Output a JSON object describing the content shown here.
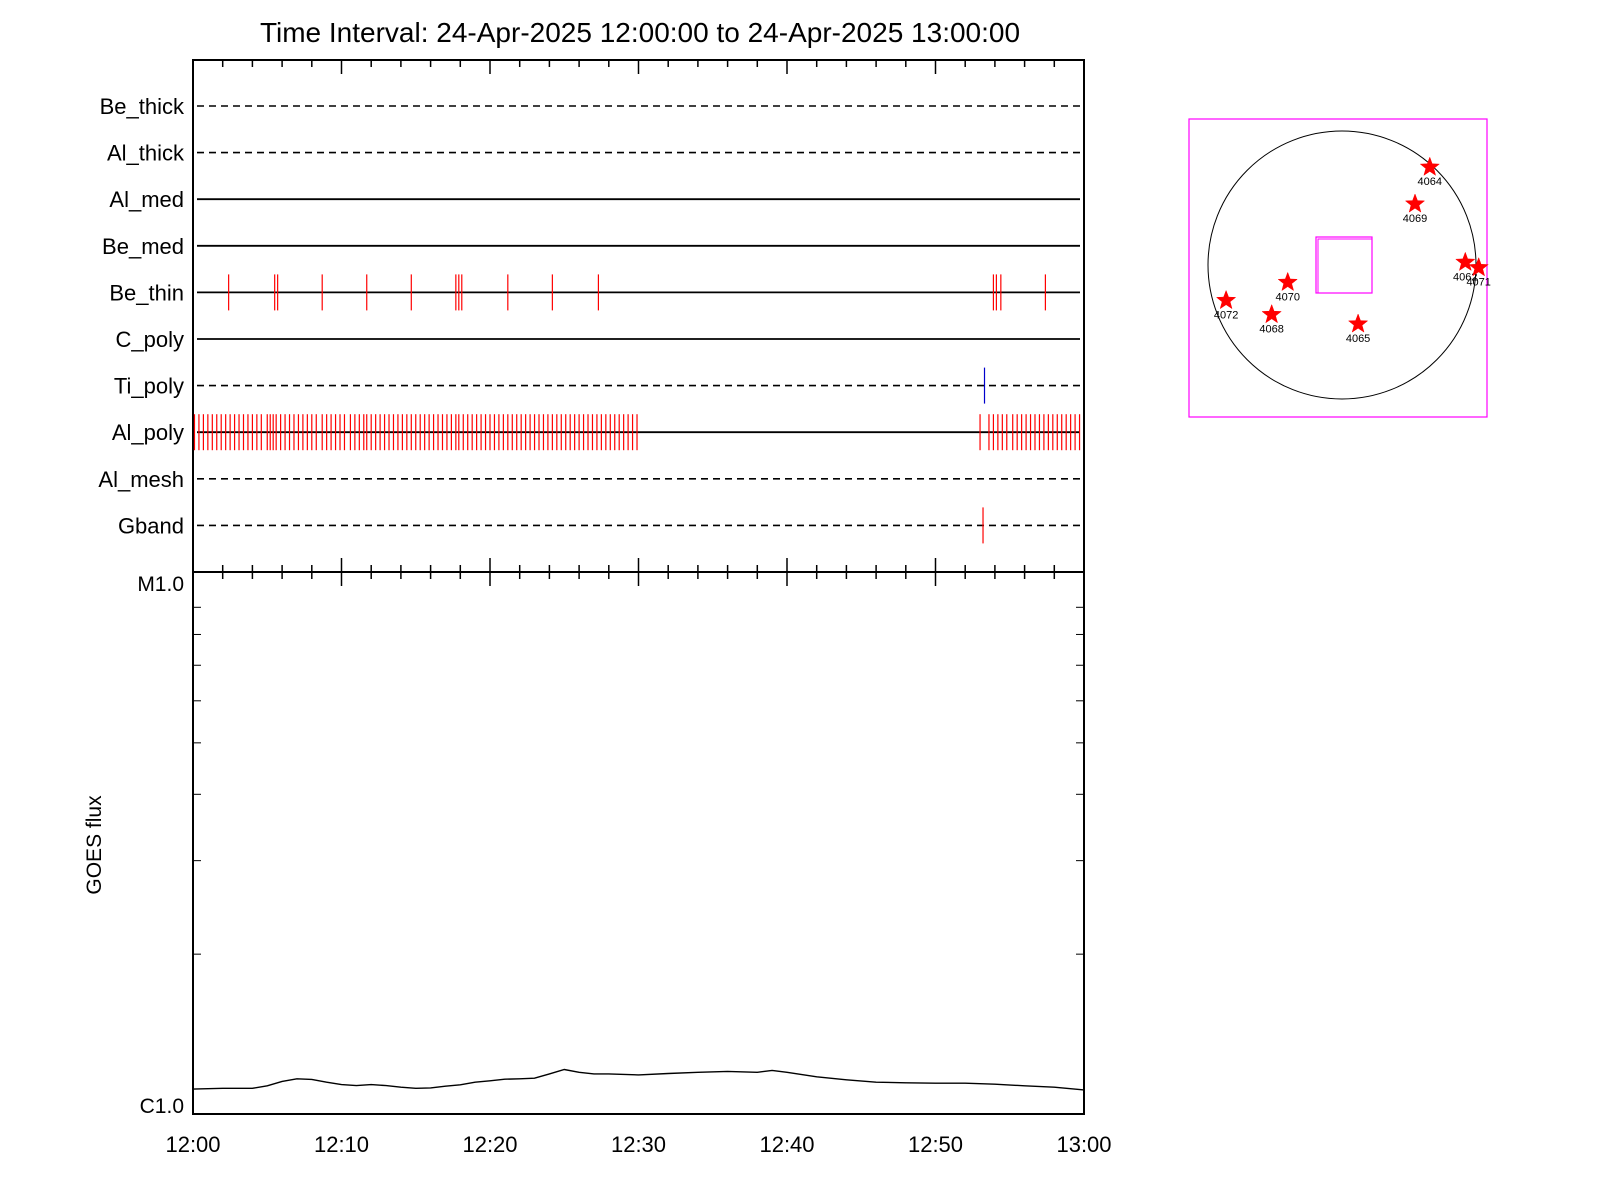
{
  "colors": {
    "axis": "#000000",
    "event_red": "#ff0000",
    "event_blue": "#0000cc",
    "sun_box": "#ff00ff",
    "star": "#ff0000"
  },
  "chart_data": [
    {
      "type": "timeline",
      "title": "Time Interval: 24-Apr-2025 12:00:00 to 24-Apr-2025 13:00:00",
      "x_unit": "minutes after 12:00",
      "xlim": [
        0,
        60
      ],
      "channels": [
        {
          "name": "Be_thick",
          "style": "dashed",
          "events": []
        },
        {
          "name": "Al_thick",
          "style": "dashed",
          "events": []
        },
        {
          "name": "Al_med",
          "style": "solid",
          "events": []
        },
        {
          "name": "Be_med",
          "style": "solid",
          "events": []
        },
        {
          "name": "Be_thin",
          "style": "solid",
          "event_color": "red",
          "events": [
            2.4,
            5.5,
            5.7,
            8.7,
            11.7,
            14.7,
            17.7,
            17.9,
            18.1,
            21.2,
            24.2,
            27.3,
            53.9,
            54.1,
            54.4,
            57.4
          ]
        },
        {
          "name": "C_poly",
          "style": "solid",
          "events": []
        },
        {
          "name": "Ti_poly",
          "style": "dashed",
          "event_color": "blue",
          "events": [
            53.3
          ]
        },
        {
          "name": "Al_poly",
          "style": "solid",
          "event_color": "red",
          "events": [
            0.1,
            0.4,
            0.7,
            1.0,
            1.3,
            1.6,
            1.9,
            2.2,
            2.5,
            2.8,
            3.1,
            3.4,
            3.7,
            4.0,
            4.3,
            4.6,
            5.0,
            5.2,
            5.4,
            5.6,
            5.9,
            6.2,
            6.5,
            6.8,
            7.1,
            7.4,
            7.7,
            8.0,
            8.3,
            8.7,
            9.0,
            9.3,
            9.6,
            9.9,
            10.2,
            10.6,
            10.9,
            11.2,
            11.5,
            11.7,
            12.0,
            12.3,
            12.6,
            12.9,
            13.2,
            13.5,
            13.8,
            14.1,
            14.4,
            14.7,
            15.0,
            15.3,
            15.6,
            15.9,
            16.2,
            16.5,
            16.8,
            17.1,
            17.4,
            17.7,
            17.9,
            18.2,
            18.5,
            18.8,
            19.1,
            19.4,
            19.7,
            20.0,
            20.3,
            20.6,
            20.9,
            21.2,
            21.5,
            21.8,
            22.1,
            22.4,
            22.7,
            23.0,
            23.3,
            23.6,
            23.9,
            24.2,
            24.5,
            24.8,
            25.1,
            25.4,
            25.7,
            26.0,
            26.3,
            26.6,
            26.9,
            27.2,
            27.5,
            27.8,
            28.1,
            28.4,
            28.7,
            29.0,
            29.3,
            29.6,
            29.9,
            53.0,
            53.6,
            53.9,
            54.2,
            54.5,
            54.8,
            55.2,
            55.5,
            55.8,
            56.1,
            56.4,
            56.7,
            57.0,
            57.3,
            57.6,
            57.9,
            58.2,
            58.5,
            58.8,
            59.1,
            59.4,
            59.7
          ]
        },
        {
          "name": "Al_mesh",
          "style": "dashed",
          "events": []
        },
        {
          "name": "Gband",
          "style": "dashed",
          "event_color": "red",
          "events": [
            53.2
          ]
        }
      ]
    },
    {
      "type": "line",
      "ylabel": "GOES flux",
      "y_scale": "log",
      "ylim_labels": [
        "C1.0",
        "M1.0"
      ],
      "ylim": [
        1e-06,
        1e-05
      ],
      "xlim": [
        0,
        60
      ],
      "x_ticks": [
        0,
        10,
        20,
        30,
        40,
        50,
        60
      ],
      "x_tick_labels": [
        "12:00",
        "12:10",
        "12:20",
        "12:30",
        "12:40",
        "12:50",
        "13:00"
      ],
      "series": [
        {
          "x": [
            0,
            2,
            4,
            5,
            6,
            7,
            8,
            9,
            10,
            11,
            12,
            13,
            14,
            15,
            16,
            17,
            18,
            19,
            20,
            21,
            22,
            23,
            24,
            25,
            26,
            27,
            28,
            30,
            32,
            34,
            36,
            38,
            39,
            40,
            42,
            44,
            46,
            48,
            50,
            52,
            54,
            56,
            58,
            60
          ],
          "y": [
            1.114e-06,
            1.118e-06,
            1.118e-06,
            1.13e-06,
            1.152e-06,
            1.165e-06,
            1.162e-06,
            1.148e-06,
            1.136e-06,
            1.131e-06,
            1.136e-06,
            1.131e-06,
            1.123e-06,
            1.118e-06,
            1.12e-06,
            1.128e-06,
            1.135e-06,
            1.148e-06,
            1.155e-06,
            1.163e-06,
            1.165e-06,
            1.168e-06,
            1.19e-06,
            1.213e-06,
            1.198e-06,
            1.19e-06,
            1.19e-06,
            1.185e-06,
            1.192e-06,
            1.198e-06,
            1.203e-06,
            1.198e-06,
            1.208e-06,
            1.198e-06,
            1.175e-06,
            1.16e-06,
            1.148e-06,
            1.145e-06,
            1.143e-06,
            1.143e-06,
            1.138e-06,
            1.13e-06,
            1.123e-06,
            1.11e-06
          ]
        }
      ]
    },
    {
      "type": "scatter",
      "points": [
        {
          "label": "4064",
          "x": 0.655,
          "y": 0.73
        },
        {
          "label": "4069",
          "x": 0.545,
          "y": 0.455
        },
        {
          "label": "4062",
          "x": 0.92,
          "y": 0.02
        },
        {
          "label": "4070",
          "x": -0.405,
          "y": -0.13
        },
        {
          "label": "4072",
          "x": -0.865,
          "y": -0.265
        },
        {
          "label": "4068",
          "x": -0.525,
          "y": -0.37
        },
        {
          "label": "4065",
          "x": 0.12,
          "y": -0.44
        },
        {
          "label": "4071",
          "x": 1.02,
          "y": -0.02
        }
      ]
    }
  ]
}
